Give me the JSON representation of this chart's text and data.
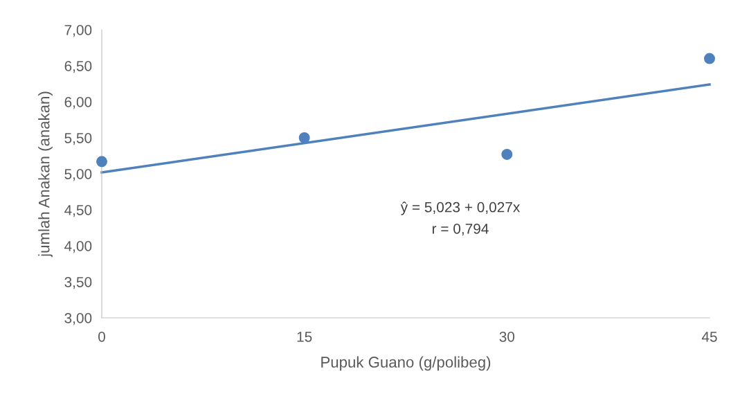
{
  "chart_data": {
    "type": "scatter",
    "xlabel": "Pupuk Guano (g/polibeg)",
    "ylabel": "jumlah Anakan (anakan)",
    "x": [
      0,
      15,
      30,
      45
    ],
    "series": [
      {
        "color": "#4f81bd",
        "marker": "circle",
        "values": [
          5.17,
          5.5,
          5.27,
          6.6
        ]
      },
      {
        "type": "line",
        "color": "#4f81bd",
        "x": [
          0,
          45
        ],
        "values": [
          5.02,
          6.24
        ]
      }
    ],
    "xlim": [
      0,
      45
    ],
    "xticks": [
      0,
      15,
      30,
      45
    ],
    "ylim": [
      3,
      7
    ],
    "yticks": [
      {
        "value": 3,
        "label": "3,00"
      },
      {
        "value": 3.5,
        "label": "3,50"
      },
      {
        "value": 4,
        "label": "4,00"
      },
      {
        "value": 4.5,
        "label": "4,50"
      },
      {
        "value": 5,
        "label": "5,00"
      },
      {
        "value": 5.5,
        "label": "5,50"
      },
      {
        "value": 6,
        "label": "6,00"
      },
      {
        "value": 6.5,
        "label": "6,50"
      },
      {
        "value": 7,
        "label": "7,00"
      }
    ],
    "annotations": [
      "ŷ = 5,023 + 0,027x",
      "r = 0,794"
    ],
    "grid": false,
    "legend": false
  }
}
